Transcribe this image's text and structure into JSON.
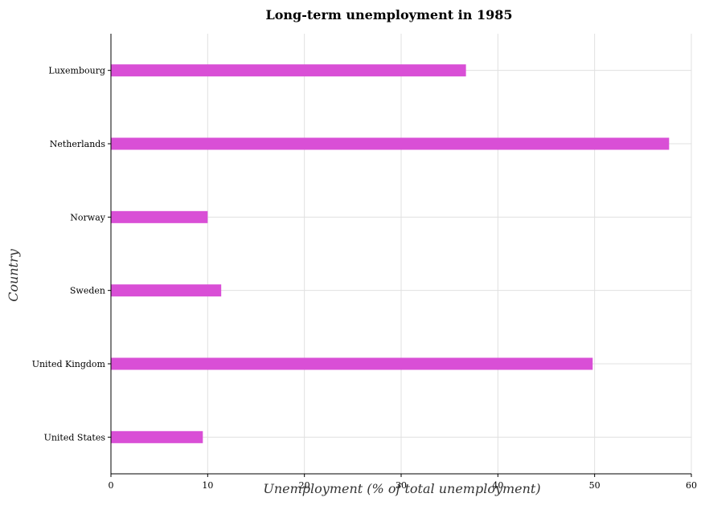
{
  "chart_data": {
    "type": "bar",
    "orientation": "horizontal",
    "title": "Long-term unemployment in 1985",
    "xlabel": "Unemployment (% of total unemployment)",
    "ylabel": "Country",
    "categories": [
      "Luxembourg",
      "Netherlands",
      "Norway",
      "Sweden",
      "United Kingdom",
      "United States"
    ],
    "values": [
      36.7,
      57.7,
      10.0,
      11.4,
      49.8,
      9.5
    ],
    "xlim": [
      0,
      60
    ],
    "xticks": [
      0,
      10,
      20,
      30,
      40,
      50,
      60
    ],
    "grid": true,
    "bar_color": "#d94fd6"
  }
}
